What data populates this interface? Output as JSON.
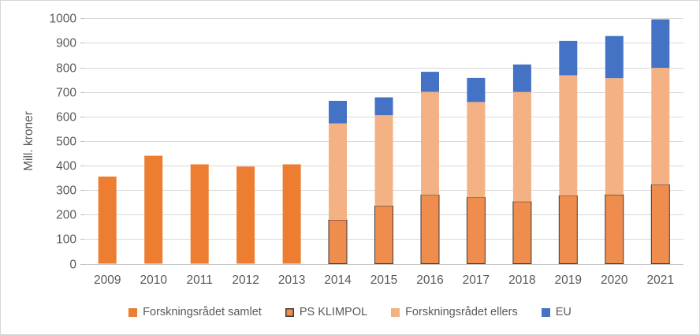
{
  "chart": {
    "y_axis_title": "Mill. kroner"
  },
  "chart_data": {
    "type": "bar",
    "stacked": true,
    "title": "",
    "xlabel": "",
    "ylabel": "Mill. kroner",
    "ylim": [
      0,
      1000
    ],
    "ytick_step": 100,
    "grid": true,
    "legend_position": "bottom",
    "categories": [
      "2009",
      "2010",
      "2011",
      "2012",
      "2013",
      "2014",
      "2015",
      "2016",
      "2017",
      "2018",
      "2019",
      "2020",
      "2021"
    ],
    "series": [
      {
        "name": "Forskningsrådet samlet",
        "color": "#ED7D31",
        "values": [
          355,
          440,
          405,
          396,
          405,
          0,
          0,
          0,
          0,
          0,
          0,
          0,
          0
        ]
      },
      {
        "name": "PS KLIMPOL",
        "color": "#EF8D4E",
        "outline": "#3F3A38",
        "values": [
          0,
          0,
          0,
          0,
          0,
          178,
          235,
          280,
          270,
          253,
          277,
          281,
          322
        ]
      },
      {
        "name": "Forskningsrådet ellers",
        "color": "#F4B183",
        "values": [
          0,
          0,
          0,
          0,
          0,
          394,
          370,
          420,
          389,
          447,
          491,
          475,
          476
        ]
      },
      {
        "name": "EU",
        "color": "#4472C4",
        "values": [
          0,
          0,
          0,
          0,
          0,
          92,
          73,
          82,
          98,
          112,
          140,
          172,
          198
        ]
      }
    ]
  },
  "style_colors": {
    "gridline": "#D9D9D9",
    "axis_line": "#C6C6C6",
    "tick_mark": "#BFBFBF",
    "label_text": "#595959",
    "frame_border": "#D7D7D7",
    "background": "#FFFFFF"
  }
}
